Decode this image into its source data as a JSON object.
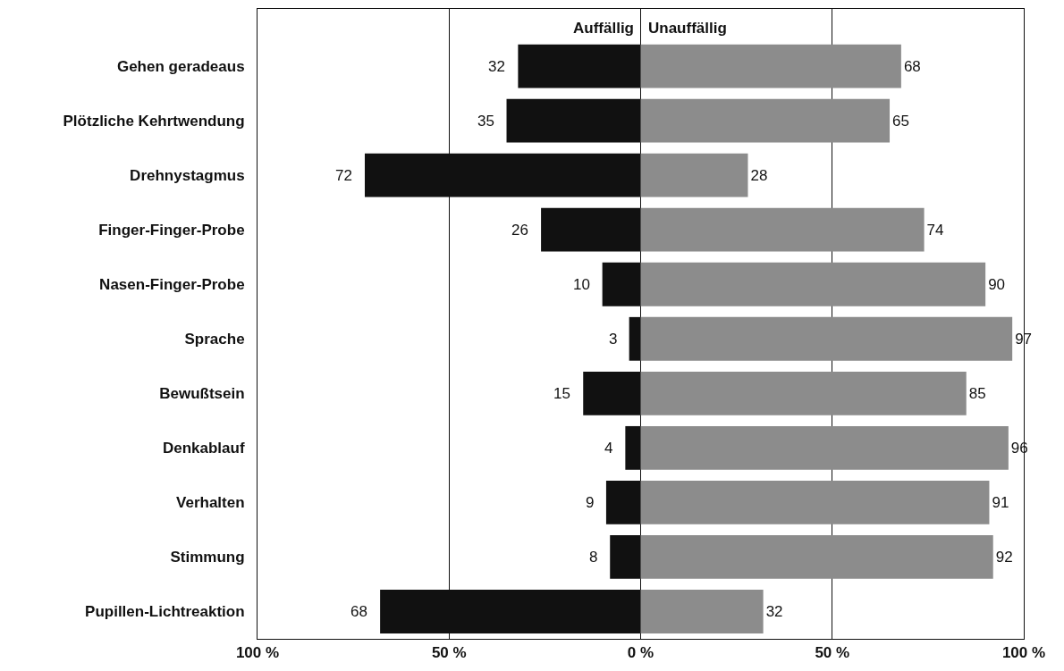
{
  "chart_data": {
    "type": "bar",
    "orientation": "horizontal",
    "categories": [
      "Gehen geradeaus",
      "Plötzliche Kehrtwendung",
      "Drehnystagmus",
      "Finger-Finger-Probe",
      "Nasen-Finger-Probe",
      "Sprache",
      "Bewußtsein",
      "Denkablauf",
      "Verhalten",
      "Stimmung",
      "Pupillen-Lichtreaktion"
    ],
    "series": [
      {
        "name": "Auffällig",
        "color": "#111111",
        "values": [
          32,
          35,
          72,
          26,
          10,
          3,
          15,
          4,
          9,
          8,
          68
        ],
        "base": [
          -32,
          -35,
          -72,
          -26,
          -10,
          -3,
          -15,
          -4,
          -9,
          -8,
          -68
        ]
      },
      {
        "name": "Unauffällig",
        "color": "#8c8c8c",
        "values": [
          68,
          65,
          28,
          74,
          90,
          97,
          85,
          96,
          91,
          92,
          32
        ]
      }
    ],
    "xlim": [
      -100,
      100
    ],
    "xticks": [
      {
        "value": -100,
        "label": "100 %"
      },
      {
        "value": -50,
        "label": "50 %"
      },
      {
        "value": 0,
        "label": "0 %"
      },
      {
        "value": 50,
        "label": "50 %"
      },
      {
        "value": 100,
        "label": "100 %"
      }
    ],
    "grid": "x",
    "legend": false,
    "data_labels": true
  }
}
